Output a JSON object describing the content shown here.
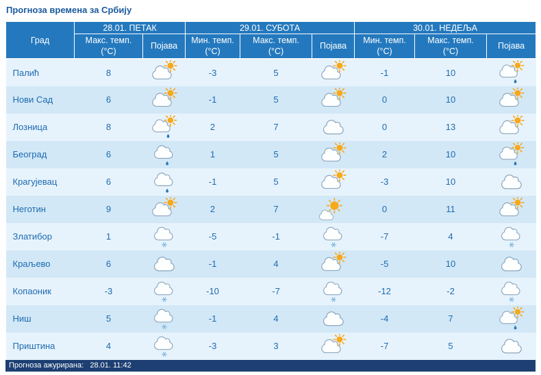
{
  "page": {
    "title": "Прогноза времена за Србију",
    "footer": "Прогноза ажурирана:   28.01. 11:42"
  },
  "colors": {
    "header_blue": "#2479be",
    "row_light": "#e7f3fc",
    "row_dark": "#d2e8f7",
    "text_blue": "#1d6ab0",
    "footer_navy": "#1d3f72",
    "sun_orange": "#f7a81b",
    "cloud_outline": "#8ba6bd",
    "snow_blue": "#7fb8e0",
    "rain_blue": "#2a7ab9"
  },
  "table": {
    "day_headers": [
      "28.01. ПЕТАК",
      "29.01. СУБОТА",
      "30.01. НЕДЕЉА"
    ],
    "col_headers": {
      "city": "Град",
      "max": "Макс. темп.",
      "min": "Мин. темп.",
      "unit": "(°C)",
      "phenomenon": "Појава"
    },
    "rows": [
      {
        "city": "Палић",
        "d1": {
          "max": "8",
          "icon": "sun-cloud"
        },
        "d2": {
          "min": "-3",
          "max": "5",
          "icon": "sun-cloud"
        },
        "d3": {
          "min": "-1",
          "max": "10",
          "icon": "sun-cloud-rain"
        }
      },
      {
        "city": "Нови Сад",
        "d1": {
          "max": "6",
          "icon": "sun-cloud"
        },
        "d2": {
          "min": "-1",
          "max": "5",
          "icon": "sun-cloud"
        },
        "d3": {
          "min": "0",
          "max": "10",
          "icon": "sun-cloud"
        }
      },
      {
        "city": "Лозница",
        "d1": {
          "max": "8",
          "icon": "sun-cloud-rain"
        },
        "d2": {
          "min": "2",
          "max": "7",
          "icon": "cloud"
        },
        "d3": {
          "min": "0",
          "max": "13",
          "icon": "sun-cloud"
        }
      },
      {
        "city": "Београд",
        "d1": {
          "max": "6",
          "icon": "cloud-rain"
        },
        "d2": {
          "min": "1",
          "max": "5",
          "icon": "sun-cloud"
        },
        "d3": {
          "min": "2",
          "max": "10",
          "icon": "sun-cloud-rain"
        }
      },
      {
        "city": "Крагујевац",
        "d1": {
          "max": "6",
          "icon": "cloud-rain"
        },
        "d2": {
          "min": "-1",
          "max": "5",
          "icon": "sun-cloud"
        },
        "d3": {
          "min": "-3",
          "max": "10",
          "icon": "cloud"
        }
      },
      {
        "city": "Неготин",
        "d1": {
          "max": "9",
          "icon": "sun-cloud"
        },
        "d2": {
          "min": "2",
          "max": "7",
          "icon": "sun-big-cloud"
        },
        "d3": {
          "min": "0",
          "max": "11",
          "icon": "sun-cloud"
        }
      },
      {
        "city": "Златибор",
        "d1": {
          "max": "1",
          "icon": "cloud-snow"
        },
        "d2": {
          "min": "-5",
          "max": "-1",
          "icon": "cloud-snow"
        },
        "d3": {
          "min": "-7",
          "max": "4",
          "icon": "cloud-snow"
        }
      },
      {
        "city": "Краљево",
        "d1": {
          "max": "6",
          "icon": "cloud"
        },
        "d2": {
          "min": "-1",
          "max": "4",
          "icon": "sun-cloud"
        },
        "d3": {
          "min": "-5",
          "max": "10",
          "icon": "cloud"
        }
      },
      {
        "city": "Копаоник",
        "d1": {
          "max": "-3",
          "icon": "cloud-snow"
        },
        "d2": {
          "min": "-10",
          "max": "-7",
          "icon": "cloud-snow"
        },
        "d3": {
          "min": "-12",
          "max": "-2",
          "icon": "cloud-snow"
        }
      },
      {
        "city": "Ниш",
        "d1": {
          "max": "5",
          "icon": "cloud-snow"
        },
        "d2": {
          "min": "-1",
          "max": "4",
          "icon": "cloud"
        },
        "d3": {
          "min": "-4",
          "max": "7",
          "icon": "sun-cloud-rain"
        }
      },
      {
        "city": "Приштина",
        "d1": {
          "max": "4",
          "icon": "cloud-snow"
        },
        "d2": {
          "min": "-3",
          "max": "3",
          "icon": "sun-cloud"
        },
        "d3": {
          "min": "-7",
          "max": "5",
          "icon": "cloud"
        }
      }
    ]
  }
}
